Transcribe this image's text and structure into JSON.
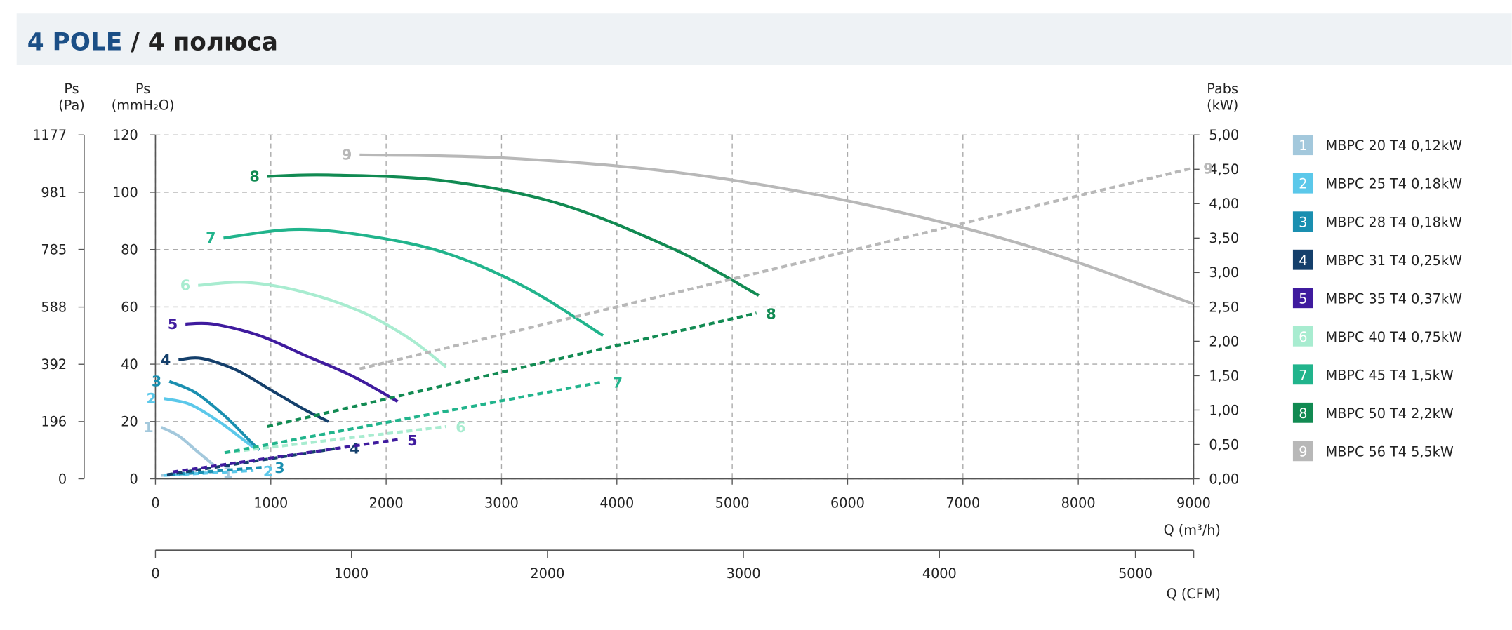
{
  "header": {
    "title": "4 POLE",
    "subtitle": " / 4 полюса"
  },
  "chart_data": {
    "type": "fan-curve",
    "ylabel": "Ps",
    "ylabel_unit": "(mmH₂O)",
    "y3label": "Ps",
    "y3label_unit": "(Pa)",
    "y2label": "Pabs",
    "y2label_unit": "(kW)",
    "xlabel": "Q (m³/h)",
    "x2label": "Q (CFM)",
    "xlim": [
      0,
      9000
    ],
    "xticks": [
      0,
      1000,
      2000,
      3000,
      4000,
      5000,
      6000,
      7000,
      8000,
      9000
    ],
    "ylim": [
      0,
      120
    ],
    "yticks": [
      0,
      20,
      40,
      60,
      80,
      100,
      120
    ],
    "y3lim": [
      0,
      1177
    ],
    "y3ticks": [
      0,
      196,
      392,
      588,
      785,
      981,
      1177
    ],
    "y2lim": [
      0,
      5
    ],
    "y2ticks": [
      {
        "value": 0,
        "label": "0,00"
      },
      {
        "value": 0.5,
        "label": "0,50"
      },
      {
        "value": 1,
        "label": "1,00"
      },
      {
        "value": 1.5,
        "label": "1,50"
      },
      {
        "value": 2,
        "label": "2,00"
      },
      {
        "value": 2.5,
        "label": "2,50"
      },
      {
        "value": 3,
        "label": "3,00"
      },
      {
        "value": 3.5,
        "label": "3,50"
      },
      {
        "value": 4,
        "label": "4,00"
      },
      {
        "value": 4.5,
        "label": "4,50"
      },
      {
        "value": 5,
        "label": "5,00"
      }
    ],
    "x2lim": [
      0,
      5297
    ],
    "x2ticks": [
      0,
      1000,
      2000,
      3000,
      4000,
      5000
    ],
    "grid": true,
    "series": [
      {
        "name": "MBPC 20 T4 0,12kW",
        "label": "1",
        "color": "#a3c8dc",
        "pressure": {
          "x": [
            50,
            200,
            350,
            500
          ],
          "values": [
            18,
            15,
            10,
            5
          ]
        },
        "power": {
          "x": [
            50,
            500
          ],
          "values": [
            0.05,
            0.1
          ]
        }
      },
      {
        "name": "MBPC 25 T4 0,18kW",
        "label": "2",
        "color": "#5bc8ea",
        "pressure": {
          "x": [
            75,
            300,
            550,
            750,
            850
          ],
          "values": [
            28,
            26,
            20,
            14,
            11
          ]
        },
        "power": {
          "x": [
            75,
            850
          ],
          "values": [
            0.05,
            0.12
          ]
        }
      },
      {
        "name": "MBPC 28 T4 0,18kW",
        "label": "3",
        "color": "#1a8fb0",
        "pressure": {
          "x": [
            120,
            350,
            600,
            800,
            900
          ],
          "values": [
            34,
            30,
            22,
            14,
            10
          ]
        },
        "power": {
          "x": [
            120,
            950
          ],
          "values": [
            0.06,
            0.17
          ]
        }
      },
      {
        "name": "MBPC 31 T4 0,25kW",
        "label": "4",
        "color": "#143f6b",
        "pressure": {
          "x": [
            200,
            400,
            700,
            1000,
            1300,
            1500
          ],
          "values": [
            41.5,
            42,
            38,
            31,
            24,
            20
          ]
        },
        "power": {
          "x": [
            100,
            1600
          ],
          "values": [
            0.06,
            0.45
          ]
        }
      },
      {
        "name": "MBPC 35 T4 0,37kW",
        "label": "5",
        "color": "#3f1b9e",
        "pressure": {
          "x": [
            260,
            500,
            900,
            1300,
            1700,
            2100
          ],
          "values": [
            54,
            54,
            50,
            43,
            36,
            27
          ]
        },
        "power": {
          "x": [
            150,
            2100
          ],
          "values": [
            0.1,
            0.57
          ]
        }
      },
      {
        "name": "MBPC 40 T4 0,75kW",
        "label": "6",
        "color": "#a8ecd0",
        "pressure": {
          "x": [
            370,
            800,
            1300,
            1800,
            2200,
            2520
          ],
          "values": [
            67.5,
            68.5,
            65,
            58,
            49,
            39
          ]
        },
        "power": {
          "x": [
            600,
            2520
          ],
          "values": [
            0.38,
            0.76
          ]
        }
      },
      {
        "name": "MBPC 45 T4 1,5kW",
        "label": "7",
        "color": "#21b48c",
        "pressure": {
          "x": [
            590,
            1200,
            1800,
            2500,
            3200,
            3880
          ],
          "values": [
            84,
            87,
            85,
            79,
            67,
            50
          ]
        },
        "power": {
          "x": [
            600,
            3880
          ],
          "values": [
            0.38,
            1.41
          ]
        }
      },
      {
        "name": "MBPC 50 T4 2,2kW",
        "label": "8",
        "color": "#118a52",
        "pressure": {
          "x": [
            970,
            1500,
            2500,
            3500,
            4500,
            5230
          ],
          "values": [
            105.5,
            106,
            104,
            96,
            80,
            64
          ]
        },
        "power": {
          "x": [
            970,
            5210
          ],
          "values": [
            0.76,
            2.41
          ]
        }
      },
      {
        "name": "MBPC 56 T4 5,5kW",
        "label": "9",
        "color": "#b8b8b8",
        "pressure": {
          "x": [
            1770,
            3000,
            4500,
            6000,
            7500,
            9000
          ],
          "values": [
            113,
            112,
            107,
            97,
            82,
            61
          ]
        },
        "power": {
          "x": [
            1770,
            9000
          ],
          "values": [
            1.6,
            4.52
          ]
        }
      }
    ]
  }
}
